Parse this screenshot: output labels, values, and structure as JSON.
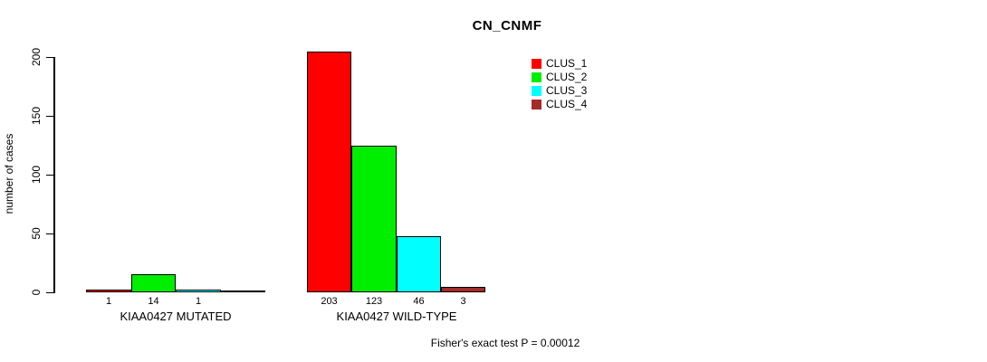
{
  "chart_data": {
    "type": "bar",
    "title": "CN_CNMF",
    "ylabel": "number of cases",
    "xlabel": "",
    "ylim": [
      0,
      200
    ],
    "yticks": [
      0,
      50,
      100,
      150,
      200
    ],
    "grid": false,
    "legend_position": "top-right-inside",
    "categories": [
      "KIAA0427 MUTATED",
      "KIAA0427 WILD-TYPE"
    ],
    "series": [
      {
        "name": "CLUS_1",
        "color": "#FF0000",
        "values": [
          1,
          203
        ]
      },
      {
        "name": "CLUS_2",
        "color": "#00EE00",
        "values": [
          14,
          123
        ]
      },
      {
        "name": "CLUS_3",
        "color": "#00FFFF",
        "values": [
          1,
          46
        ]
      },
      {
        "name": "CLUS_4",
        "color": "#A52A2A",
        "values": [
          0,
          3
        ]
      }
    ],
    "bar_labels": [
      [
        "1",
        "14",
        "1",
        ""
      ],
      [
        "203",
        "123",
        "46",
        "3"
      ]
    ],
    "annotation": "Fisher's exact test P = 0.00012",
    "axis_color": "#000000",
    "background_color": "#FFFFFF"
  }
}
